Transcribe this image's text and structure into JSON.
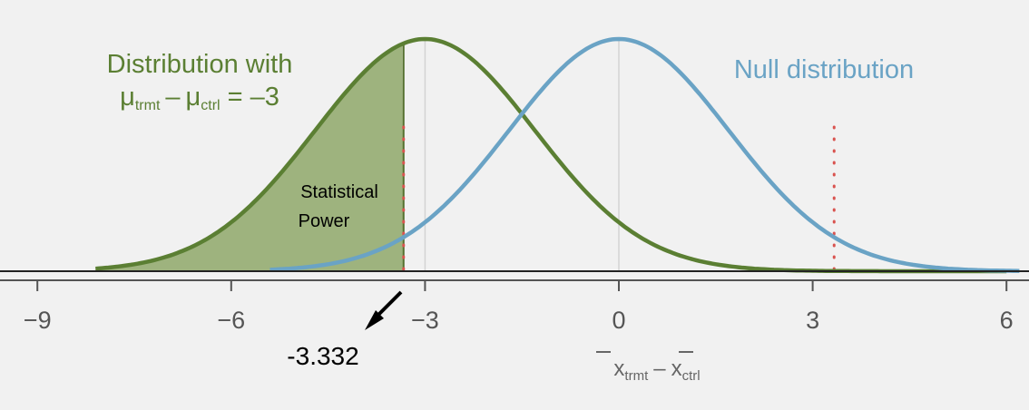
{
  "chart_data": {
    "type": "line",
    "xlim": [
      -9.5,
      6.5
    ],
    "x_ticks": [
      -9,
      -6,
      -3,
      0,
      3,
      6
    ],
    "x_tick_labels": [
      "−9",
      "−6",
      "−3",
      "0",
      "3",
      "6"
    ],
    "xlabel": {
      "x1_base": "x",
      "x1_sub": "trmt",
      "op": "–",
      "x2_base": "x",
      "x2_sub": "ctrl"
    },
    "series": [
      {
        "label_line1": "Distribution with",
        "label_line2": {
          "mu1": "μ",
          "sub1": "trmt",
          "op": "–",
          "mu2": "μ",
          "sub2": "ctrl",
          "rhs": "= –3"
        },
        "mean": -3,
        "sd": 1.7,
        "color": "#5b7f33",
        "shade_to": -3.332,
        "shade_color": "#8fa86a"
      },
      {
        "label": "Null distribution",
        "mean": 0,
        "sd": 1.7,
        "color": "#6aa3c5"
      }
    ],
    "critical_values": [
      -3.332,
      3.332
    ],
    "critical_color": "#d9534f",
    "annotations": {
      "shaded_region_label": [
        "Statistical",
        "Power"
      ],
      "critical_value_label": "-3.332"
    }
  }
}
